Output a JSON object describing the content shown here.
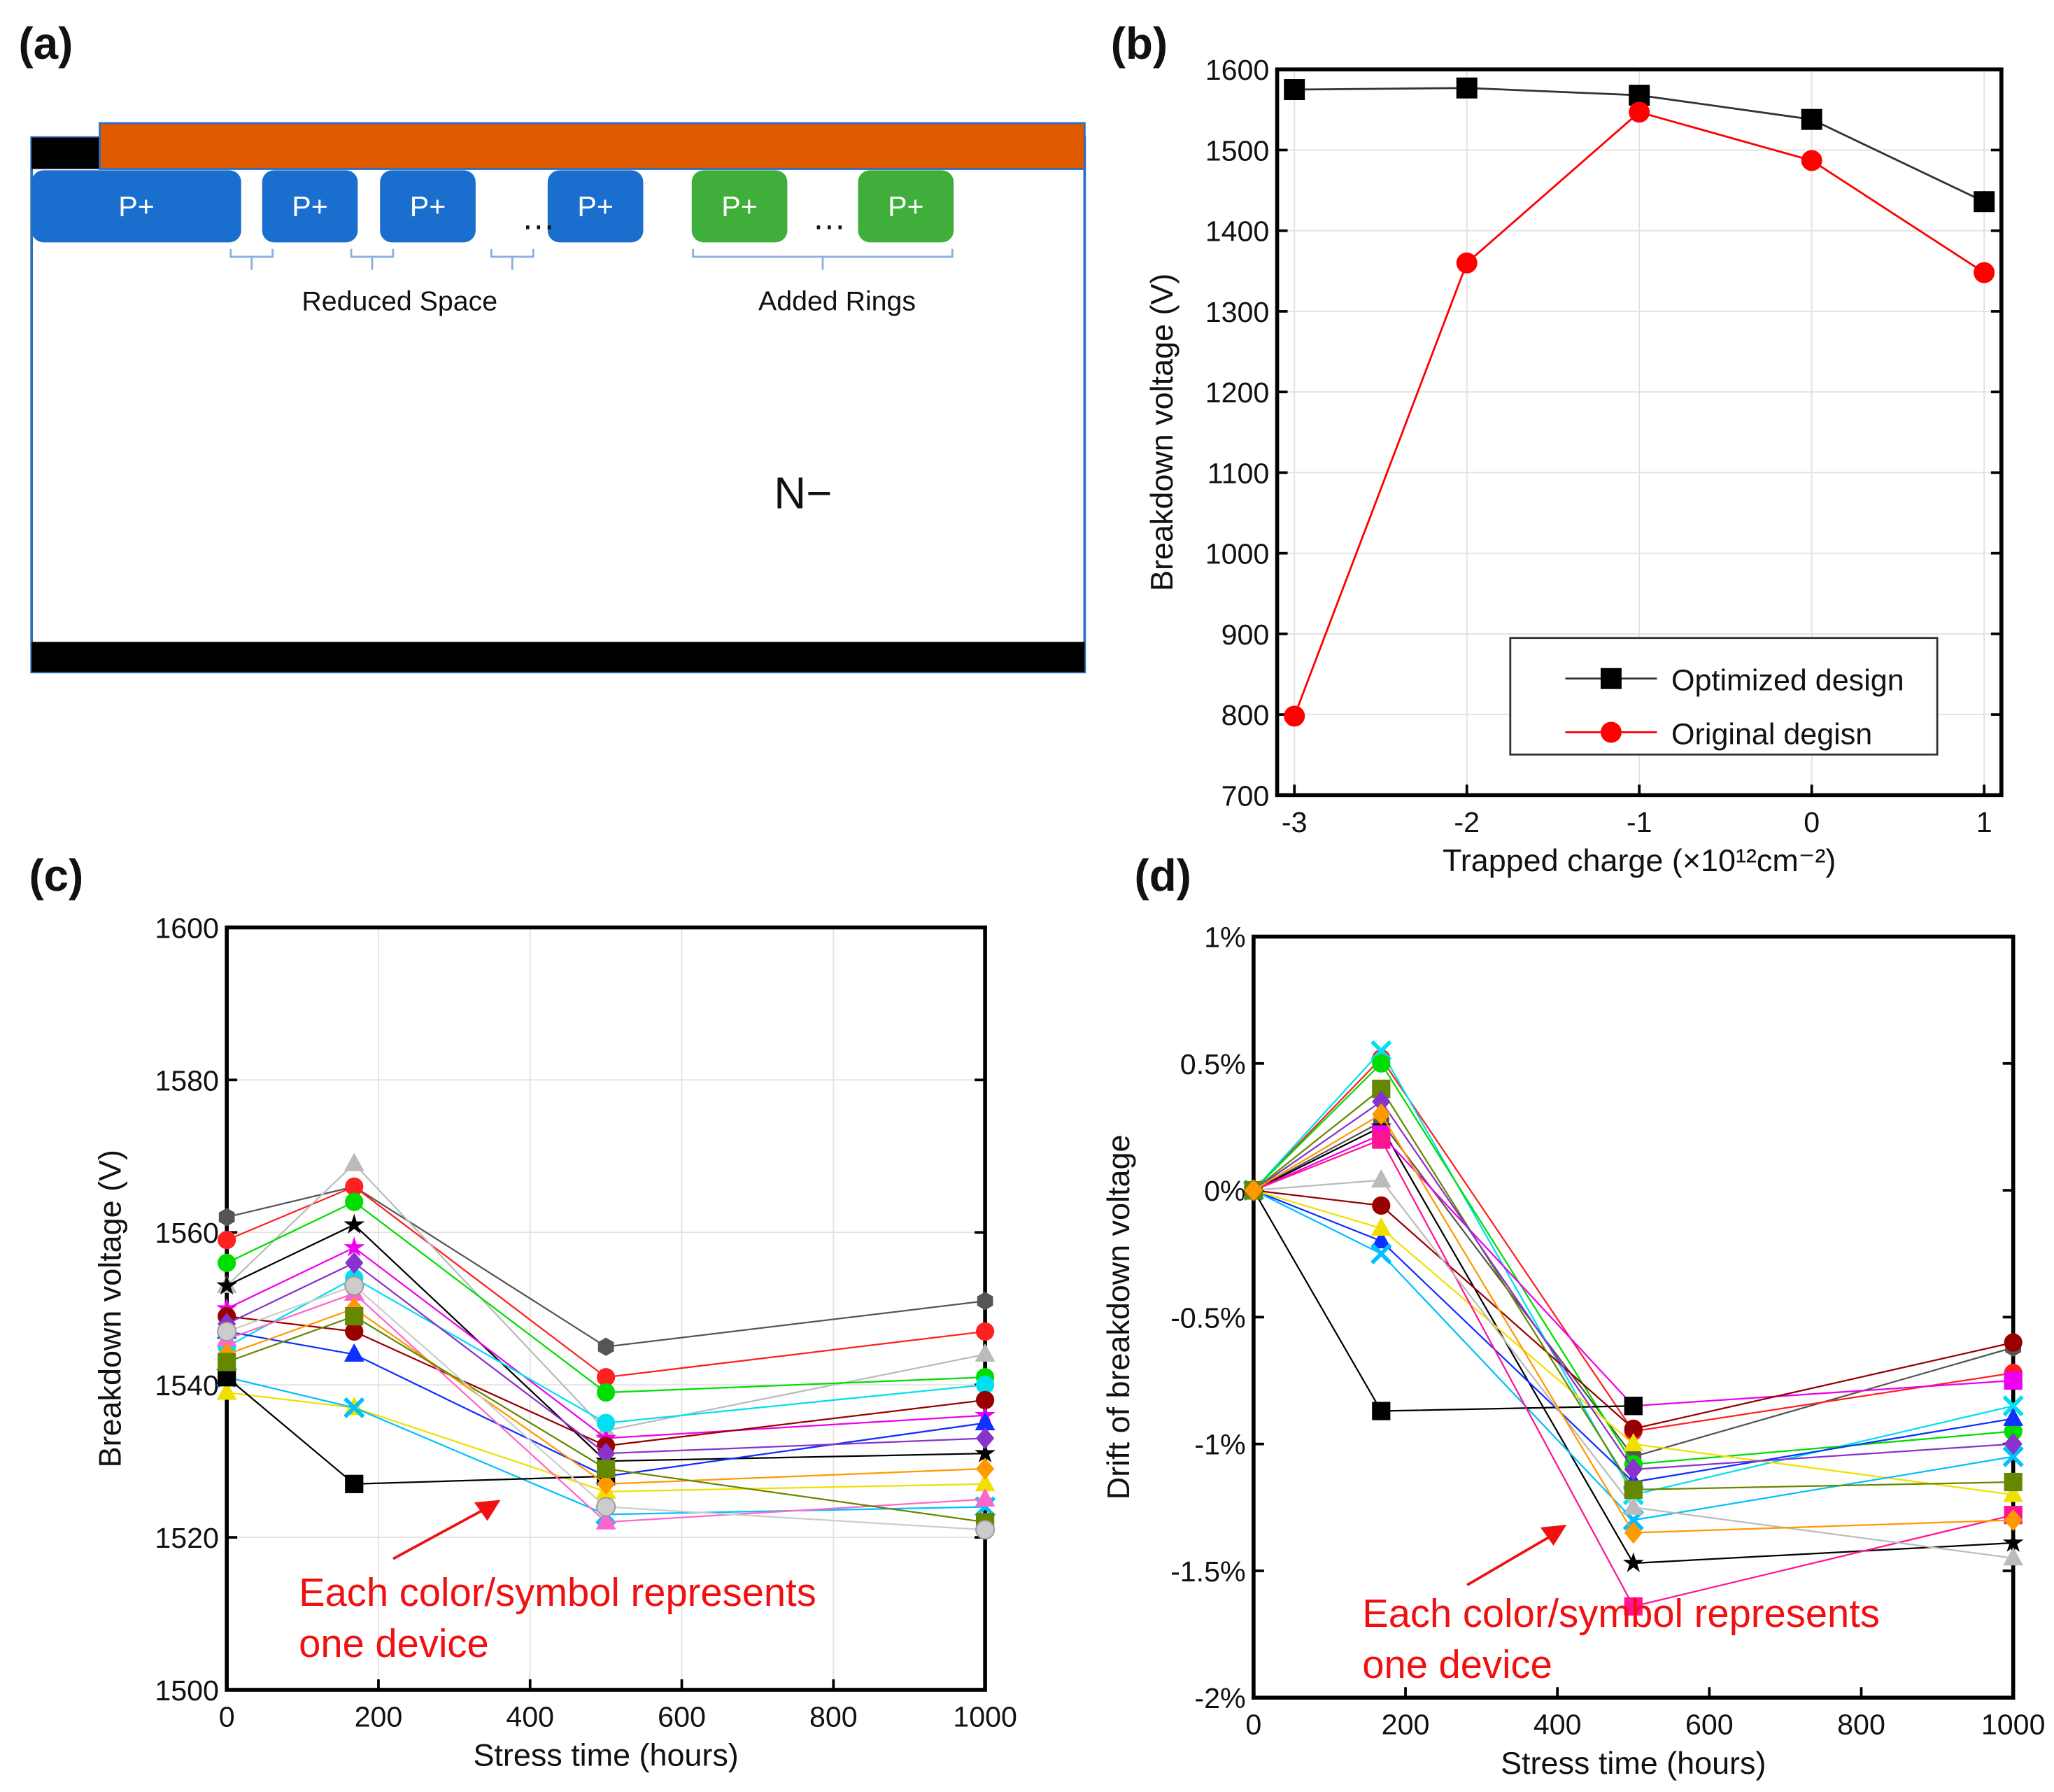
{
  "panels": {
    "a": {
      "label": "(a)",
      "regions": [
        "P+",
        "P+",
        "P+",
        "P+",
        "P+",
        "P+"
      ],
      "ellipsis": "…",
      "reduced_space": "Reduced Space",
      "added_rings": "Added Rings",
      "substrate": "N−",
      "colors": {
        "metal": "#e05a00",
        "p_blue": "#1a6fce",
        "p_green": "#3fae3a",
        "border": "#2e6fc0"
      }
    },
    "b": {
      "label": "(b)"
    },
    "c": {
      "label": "(c)",
      "note": [
        "Each color/symbol represents",
        "one device"
      ]
    },
    "d": {
      "label": "(d)",
      "note": [
        "Each color/symbol represents",
        "one device"
      ]
    }
  },
  "chart_data": [
    {
      "id": "b",
      "type": "line",
      "xlabel": "Trapped charge (×10¹²cm⁻²)",
      "ylabel": "Breakdown voltage (V)",
      "x": [
        -3,
        -2,
        -1,
        0,
        1
      ],
      "xlim": [
        -3.1,
        1.1
      ],
      "ylim": [
        700,
        1600
      ],
      "xticks": [
        "-3",
        "-2",
        "-1",
        "0",
        "1"
      ],
      "yticks": [
        "700",
        "800",
        "900",
        "1000",
        "1100",
        "1200",
        "1300",
        "1400",
        "1500",
        "1600"
      ],
      "grid": true,
      "legend": "bottom-right",
      "series": [
        {
          "name": "Optimized design",
          "color": "#000000",
          "marker": "square",
          "values": [
            1575,
            1577,
            1568,
            1538,
            1436
          ]
        },
        {
          "name": "Original degisn",
          "color": "#ff0000",
          "marker": "circle",
          "values": [
            798,
            1360,
            1547,
            1487,
            1348
          ]
        }
      ]
    },
    {
      "id": "c",
      "type": "line",
      "xlabel": "Stress time (hours)",
      "ylabel": "Breakdown voltage (V)",
      "x": [
        0,
        168,
        500,
        1000
      ],
      "xlim": [
        0,
        1000
      ],
      "ylim": [
        1500,
        1600
      ],
      "xticks": [
        "0",
        "200",
        "400",
        "600",
        "800",
        "1000"
      ],
      "yticks": [
        "1500",
        "1520",
        "1540",
        "1560",
        "1580",
        "1600"
      ],
      "grid": true,
      "series": [
        {
          "color": "#555555",
          "marker": "hexagon",
          "values": [
            1562,
            1566,
            1545,
            1551
          ]
        },
        {
          "color": "#ff2020",
          "marker": "circle",
          "values": [
            1559,
            1566,
            1541,
            1547
          ]
        },
        {
          "color": "#bbbbbb",
          "marker": "triangle",
          "values": [
            1553,
            1569,
            1534,
            1544
          ]
        },
        {
          "color": "#00dd00",
          "marker": "circle",
          "values": [
            1556,
            1564,
            1539,
            1541
          ]
        },
        {
          "color": "#000000",
          "marker": "star",
          "values": [
            1553,
            1561,
            1530,
            1531
          ]
        },
        {
          "color": "#ee00ee",
          "marker": "star",
          "values": [
            1550,
            1558,
            1533,
            1536
          ]
        },
        {
          "color": "#00e0f0",
          "marker": "circle",
          "values": [
            1545,
            1554,
            1535,
            1540
          ]
        },
        {
          "color": "#990000",
          "marker": "circle",
          "values": [
            1549,
            1547,
            1532,
            1538
          ]
        },
        {
          "color": "#1030ff",
          "marker": "triangle",
          "values": [
            1547,
            1544,
            1528,
            1535
          ]
        },
        {
          "color": "#f0e000",
          "marker": "triangle",
          "values": [
            1539,
            1537,
            1526,
            1527
          ]
        },
        {
          "color": "#00c0ff",
          "marker": "x",
          "values": [
            1541,
            1537,
            1523,
            1524
          ]
        },
        {
          "color": "#000000",
          "marker": "square",
          "values": [
            1541,
            1527,
            1528,
            null
          ]
        },
        {
          "color": "#ff66cc",
          "marker": "triangle",
          "values": [
            1546,
            1552,
            1522,
            1525
          ]
        },
        {
          "color": "#ff9900",
          "marker": "diamond",
          "values": [
            1544,
            1550,
            1527,
            1529
          ]
        },
        {
          "color": "#8833cc",
          "marker": "diamond",
          "values": [
            1548,
            1556,
            1531,
            1533
          ]
        },
        {
          "color": "#668800",
          "marker": "square",
          "values": [
            1543,
            1549,
            1529,
            1522
          ]
        },
        {
          "color": "#cccccc",
          "marker": "circle",
          "values": [
            1547,
            1553,
            1524,
            1521
          ]
        }
      ]
    },
    {
      "id": "d",
      "type": "line",
      "xlabel": "Stress time (hours)",
      "ylabel": "Drift of breakdown voltage",
      "x": [
        0,
        168,
        500,
        1000
      ],
      "xlim": [
        0,
        1000
      ],
      "ylim": [
        -2,
        1
      ],
      "xticks": [
        "0",
        "200",
        "400",
        "600",
        "800",
        "1000"
      ],
      "yticks": [
        "-2%",
        "-1.5%",
        "-1%",
        "-0.5%",
        "0%",
        "0.5%",
        "1%"
      ],
      "grid": false,
      "series": [
        {
          "color": "#555555",
          "marker": "hexagon",
          "values": [
            0,
            0.27,
            -1.05,
            -0.62
          ]
        },
        {
          "color": "#ff2020",
          "marker": "circle",
          "values": [
            0,
            0.52,
            -0.95,
            -0.72
          ]
        },
        {
          "color": "#00e0f0",
          "marker": "x",
          "values": [
            0,
            0.55,
            -1.2,
            -0.85
          ]
        },
        {
          "color": "#00dd00",
          "marker": "circle",
          "values": [
            0,
            0.5,
            -1.08,
            -0.95
          ]
        },
        {
          "color": "#000000",
          "marker": "star",
          "values": [
            0,
            0.25,
            -1.47,
            -1.39
          ]
        },
        {
          "color": "#ee00ee",
          "marker": "square",
          "values": [
            0,
            0.22,
            -0.85,
            -0.75
          ]
        },
        {
          "color": "#990000",
          "marker": "circle",
          "values": [
            0,
            -0.06,
            -0.94,
            -0.6
          ]
        },
        {
          "color": "#1030ff",
          "marker": "triangle",
          "values": [
            0,
            -0.2,
            -1.15,
            -0.9
          ]
        },
        {
          "color": "#f0e000",
          "marker": "triangle",
          "values": [
            0,
            -0.15,
            -1.0,
            -1.2
          ]
        },
        {
          "color": "#00c0ff",
          "marker": "x",
          "values": [
            0,
            -0.25,
            -1.3,
            -1.05
          ]
        },
        {
          "color": "#000000",
          "marker": "square",
          "values": [
            0,
            -0.87,
            -0.85,
            null
          ]
        },
        {
          "color": "#ff1493",
          "marker": "square",
          "values": [
            0,
            0.2,
            -1.64,
            -1.28
          ]
        },
        {
          "color": "#bbbbbb",
          "marker": "triangle",
          "values": [
            0,
            0.04,
            -1.25,
            -1.45
          ]
        },
        {
          "color": "#668800",
          "marker": "square",
          "values": [
            0,
            0.4,
            -1.18,
            -1.15
          ]
        },
        {
          "color": "#8833cc",
          "marker": "diamond",
          "values": [
            0,
            0.35,
            -1.1,
            -1.0
          ]
        },
        {
          "color": "#ff9900",
          "marker": "diamond",
          "values": [
            0,
            0.3,
            -1.35,
            -1.3
          ]
        }
      ]
    }
  ]
}
